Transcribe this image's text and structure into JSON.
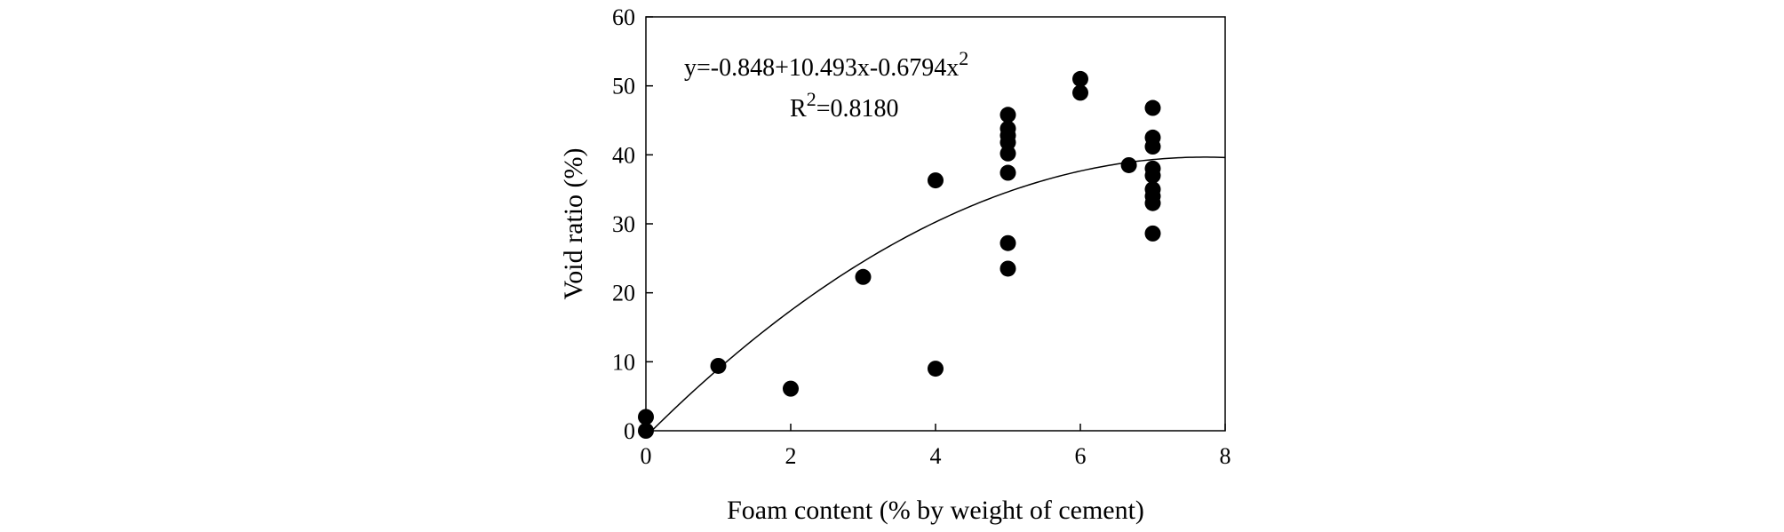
{
  "chart_data": {
    "type": "scatter",
    "title": "",
    "xlabel": "Foam content (% by weight of cement)",
    "ylabel": "Void ratio (%)",
    "xlim": [
      0,
      8
    ],
    "ylim": [
      0,
      60
    ],
    "xticks": [
      0,
      2,
      4,
      6,
      8
    ],
    "yticks": [
      0,
      10,
      20,
      30,
      40,
      50,
      60
    ],
    "grid": false,
    "legend": "none",
    "marker_color": "#000000",
    "points": [
      {
        "x": 0,
        "y": 0
      },
      {
        "x": 0,
        "y": 2
      },
      {
        "x": 1,
        "y": 9.4
      },
      {
        "x": 2,
        "y": 6.1
      },
      {
        "x": 3,
        "y": 22.3
      },
      {
        "x": 4,
        "y": 9.0
      },
      {
        "x": 4,
        "y": 36.3
      },
      {
        "x": 5,
        "y": 23.5
      },
      {
        "x": 5,
        "y": 27.2
      },
      {
        "x": 5,
        "y": 37.4
      },
      {
        "x": 5,
        "y": 40.2
      },
      {
        "x": 5,
        "y": 41.8
      },
      {
        "x": 5,
        "y": 42.8
      },
      {
        "x": 5,
        "y": 43.8
      },
      {
        "x": 5,
        "y": 45.8
      },
      {
        "x": 6,
        "y": 49.0
      },
      {
        "x": 6,
        "y": 51.0
      },
      {
        "x": 6.67,
        "y": 38.5
      },
      {
        "x": 7,
        "y": 28.6
      },
      {
        "x": 7,
        "y": 33.0
      },
      {
        "x": 7,
        "y": 34.0
      },
      {
        "x": 7,
        "y": 35.0
      },
      {
        "x": 7,
        "y": 37.0
      },
      {
        "x": 7,
        "y": 38.0
      },
      {
        "x": 7,
        "y": 41.2
      },
      {
        "x": 7,
        "y": 42.5
      },
      {
        "x": 7,
        "y": 46.8
      }
    ],
    "fit": {
      "type": "quadratic",
      "coefficients": [
        -0.848,
        10.493,
        -0.6794
      ],
      "x_range": [
        0,
        8
      ],
      "line_color": "#000000"
    },
    "annotations": {
      "equation": {
        "prefix": "y=-0.848+10.493x-0.6794x",
        "superscript": "2"
      },
      "r_squared": {
        "prefix": "R",
        "superscript": "2",
        "suffix": "=0.8180"
      }
    }
  }
}
